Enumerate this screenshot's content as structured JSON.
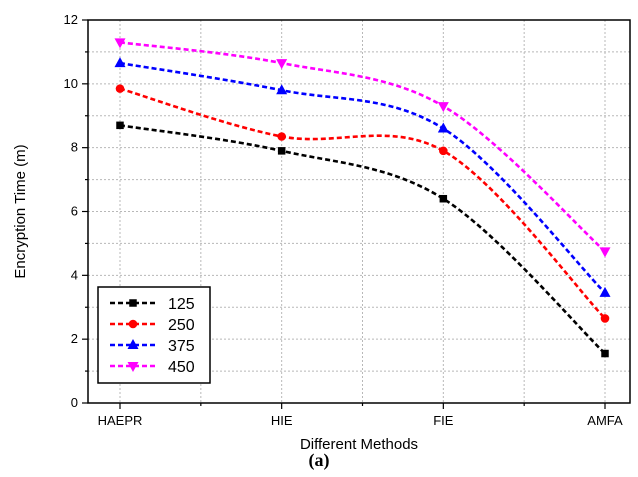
{
  "caption": "(a)",
  "chart_data": {
    "type": "line",
    "xlabel": "Different Methods",
    "ylabel": "Encryption Time (m)",
    "categories": [
      "HAEPR",
      "HIE",
      "FIE",
      "AMFA"
    ],
    "ylim": [
      0,
      12
    ],
    "yticks": [
      0,
      2,
      4,
      6,
      8,
      10,
      12
    ],
    "grid": true,
    "line_style": "dashed-smooth",
    "legend_position": "bottom-left",
    "series": [
      {
        "name": "125",
        "values": [
          8.7,
          7.9,
          6.4,
          1.55
        ],
        "color": "#000000",
        "marker": "square"
      },
      {
        "name": "250",
        "values": [
          9.85,
          8.35,
          7.9,
          2.65
        ],
        "color": "#ff0000",
        "marker": "circle"
      },
      {
        "name": "375",
        "values": [
          10.65,
          9.8,
          8.6,
          3.45
        ],
        "color": "#0000ff",
        "marker": "triangle-up"
      },
      {
        "name": "450",
        "values": [
          11.3,
          10.65,
          9.3,
          4.75
        ],
        "color": "#ff00ff",
        "marker": "triangle-down"
      }
    ]
  }
}
